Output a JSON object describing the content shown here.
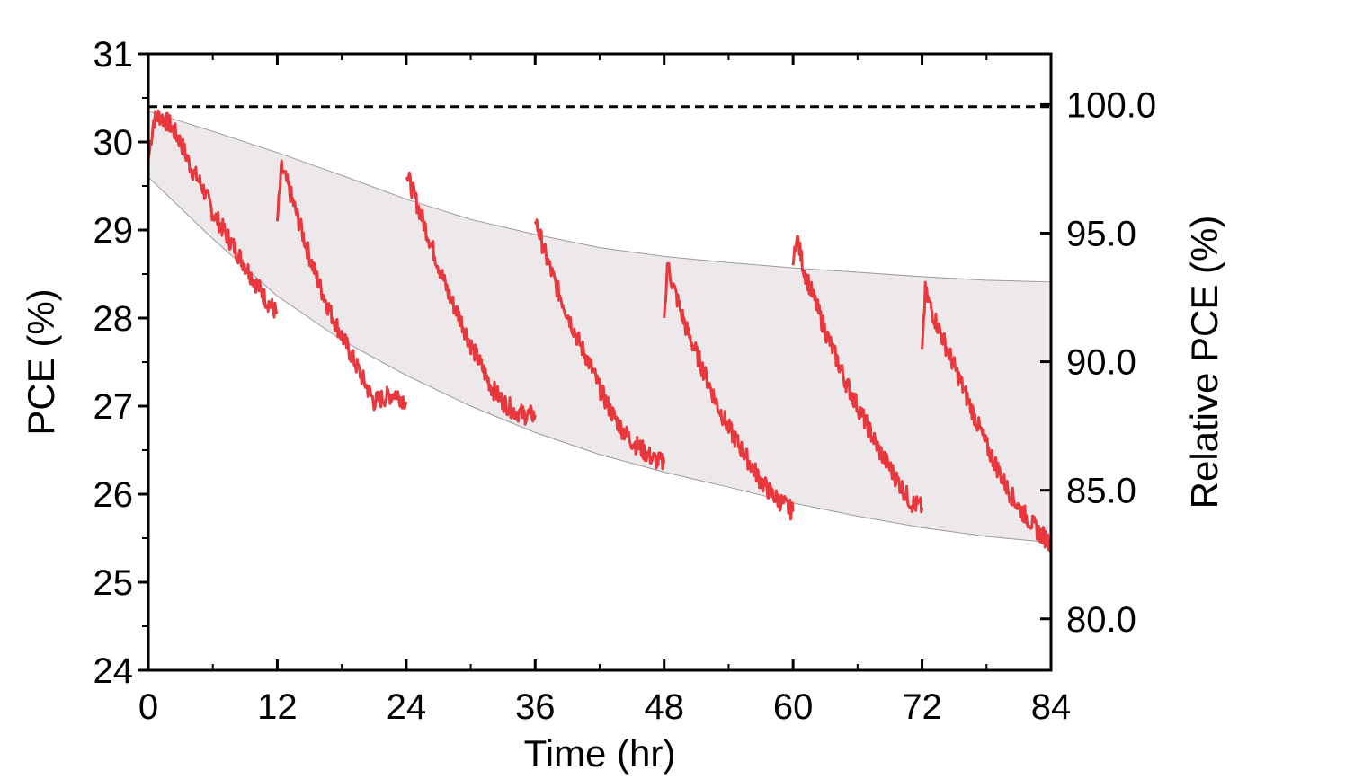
{
  "chart_data": {
    "type": "line",
    "title": "",
    "xlabel": "Time (hr)",
    "ylabel": "PCE (%)",
    "y2label": "Relative PCE (%)",
    "xlim": [
      0,
      84
    ],
    "ylim": [
      24,
      31
    ],
    "y2lim": [
      78.0,
      101.97
    ],
    "x_ticks": [
      0,
      12,
      24,
      36,
      48,
      60,
      72,
      84
    ],
    "x_tick_labels": [
      "0",
      "12",
      "24",
      "36",
      "48",
      "60",
      "72",
      "84"
    ],
    "y_ticks": [
      24,
      25,
      26,
      27,
      28,
      29,
      30,
      31
    ],
    "y_tick_labels": [
      "24",
      "25",
      "26",
      "27",
      "28",
      "29",
      "30",
      "31"
    ],
    "y2_ticks": [
      80.0,
      85.0,
      90.0,
      95.0,
      100.0
    ],
    "y2_tick_labels": [
      "80.0",
      "85.0",
      "90.0",
      "95.0",
      "100.0"
    ],
    "grid": false,
    "reference_line": {
      "y": 30.4,
      "style": "dashed",
      "color": "#000000"
    },
    "band": {
      "color": "#ede9ea",
      "x": [
        0,
        6,
        12,
        18,
        24,
        30,
        36,
        42,
        48,
        54,
        60,
        66,
        72,
        78,
        84
      ],
      "upper": [
        30.35,
        30.12,
        29.88,
        29.62,
        29.35,
        29.12,
        28.95,
        28.8,
        28.7,
        28.63,
        28.57,
        28.52,
        28.47,
        28.43,
        28.41
      ],
      "lower": [
        29.6,
        28.9,
        28.25,
        27.75,
        27.35,
        27.0,
        26.7,
        26.45,
        26.25,
        26.08,
        25.9,
        25.75,
        25.62,
        25.52,
        25.45
      ]
    },
    "series": [
      {
        "color": "#e8383d",
        "segments": [
          {
            "x": [
              0,
              0.5,
              1,
              2,
              3,
              4,
              5,
              6,
              7,
              8,
              9,
              10,
              11,
              12
            ],
            "y": [
              29.8,
              30.25,
              30.3,
              30.2,
              30.0,
              29.7,
              29.5,
              29.2,
              29.0,
              28.8,
              28.6,
              28.4,
              28.2,
              28.05
            ]
          },
          {
            "x": [
              12,
              12.4,
              13,
              14,
              15,
              16,
              17,
              18,
              19,
              20,
              21,
              22,
              23,
              24
            ],
            "y": [
              29.1,
              29.7,
              29.5,
              29.1,
              28.7,
              28.35,
              28.05,
              27.8,
              27.55,
              27.3,
              27.05,
              27.1,
              27.15,
              27.05
            ]
          },
          {
            "x": [
              24,
              24.3,
              25,
              26,
              27,
              28,
              29,
              30,
              31,
              32,
              33,
              34,
              35,
              36
            ],
            "y": [
              29.6,
              29.55,
              29.3,
              28.95,
              28.6,
              28.25,
              28.0,
              27.7,
              27.45,
              27.2,
              27.05,
              26.95,
              26.9,
              26.9
            ]
          },
          {
            "x": [
              36,
              36.3,
              37,
              38,
              39,
              40,
              41,
              42,
              43,
              44,
              45,
              46,
              47,
              48
            ],
            "y": [
              29.1,
              29.0,
              28.7,
              28.35,
              28.05,
              27.75,
              27.5,
              27.2,
              26.95,
              26.75,
              26.6,
              26.5,
              26.4,
              26.35
            ]
          },
          {
            "x": [
              48,
              48.3,
              49,
              50,
              51,
              52,
              53,
              54,
              55,
              56,
              57,
              58,
              59,
              60
            ],
            "y": [
              28.0,
              28.6,
              28.3,
              27.9,
              27.6,
              27.3,
              27.0,
              26.75,
              26.55,
              26.35,
              26.15,
              26.0,
              25.9,
              25.8
            ]
          },
          {
            "x": [
              60,
              60.3,
              61,
              62,
              63,
              64,
              65,
              66,
              67,
              68,
              69,
              70,
              71,
              72
            ],
            "y": [
              28.6,
              28.95,
              28.55,
              28.2,
              27.85,
              27.55,
              27.25,
              27.0,
              26.75,
              26.5,
              26.3,
              26.1,
              25.9,
              25.85
            ]
          },
          {
            "x": [
              72,
              72.3,
              73,
              74,
              75,
              76,
              77,
              78,
              79,
              80,
              81,
              82,
              83,
              84
            ],
            "y": [
              27.65,
              28.3,
              28.05,
              27.75,
              27.45,
              27.15,
              26.85,
              26.55,
              26.3,
              26.05,
              25.85,
              25.7,
              25.55,
              25.45
            ]
          }
        ]
      }
    ]
  }
}
